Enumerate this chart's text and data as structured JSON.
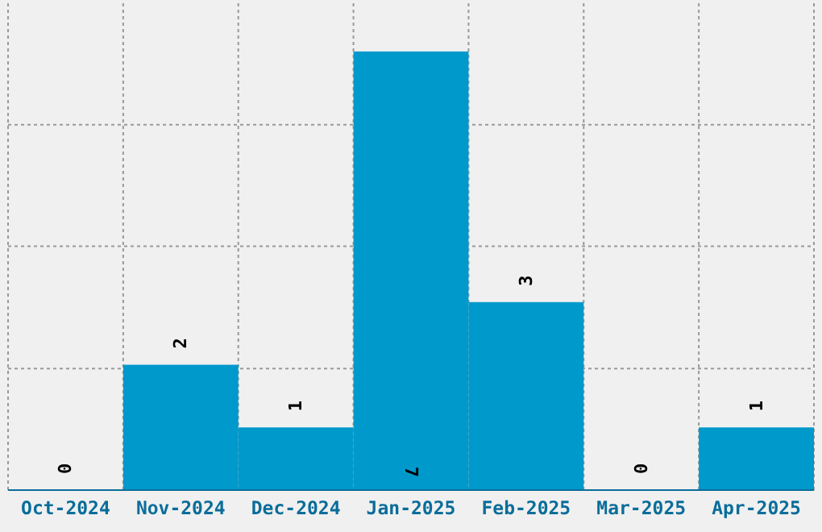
{
  "chart_data": {
    "type": "bar",
    "categories": [
      "Oct-2024",
      "Nov-2024",
      "Dec-2024",
      "Jan-2025",
      "Feb-2025",
      "Mar-2025",
      "Apr-2025"
    ],
    "values": [
      0,
      2,
      1,
      7,
      3,
      0,
      1
    ],
    "color": "#0099cc",
    "ylim": [
      0,
      7.77
    ],
    "yticks": [
      {
        "value": 1.94,
        "label": null
      },
      {
        "value": 3.89,
        "label": null
      },
      {
        "value": 5.83,
        "label": null
      }
    ],
    "grid": true,
    "data_labels": true,
    "tick_labels": "x"
  }
}
